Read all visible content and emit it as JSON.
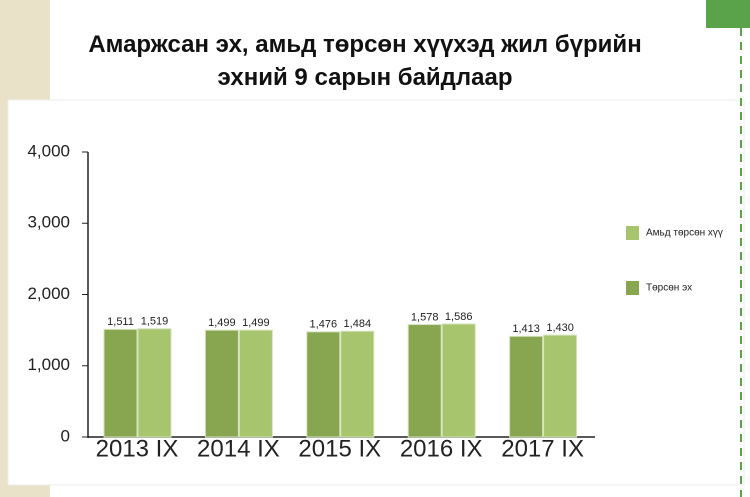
{
  "chart_data": {
    "type": "bar",
    "title": "Амаржсан эх, амьд төрсөн хүүхэд жил бүрийн\nэхний 9 сарын байдлаар",
    "categories": [
      "2013 IX",
      "2014 IX",
      "2015 IX",
      "2016 IX",
      "2017 IX"
    ],
    "series": [
      {
        "name": "Төрсөн эх",
        "color": "#87a64f",
        "values": [
          1511,
          1499,
          1476,
          1578,
          1413
        ],
        "value_labels": [
          "1,511",
          "1,499",
          "1,476",
          "1,578",
          "1,413"
        ]
      },
      {
        "name": "Амьд төрсөн хүү",
        "color": "#a7c56c",
        "values": [
          1519,
          1499,
          1484,
          1586,
          1430
        ],
        "value_labels": [
          "1,519",
          "1,499",
          "1,484",
          "1,586",
          "1,430"
        ]
      }
    ],
    "ylim": [
      0,
      4000
    ],
    "yticks": [
      0,
      {
        "value": 1000,
        "label": "1,000"
      },
      {
        "value": 2000,
        "label": "2,000"
      },
      {
        "value": 3000,
        "label": "3,000"
      },
      {
        "value": 4000,
        "label": "4,000"
      }
    ]
  }
}
